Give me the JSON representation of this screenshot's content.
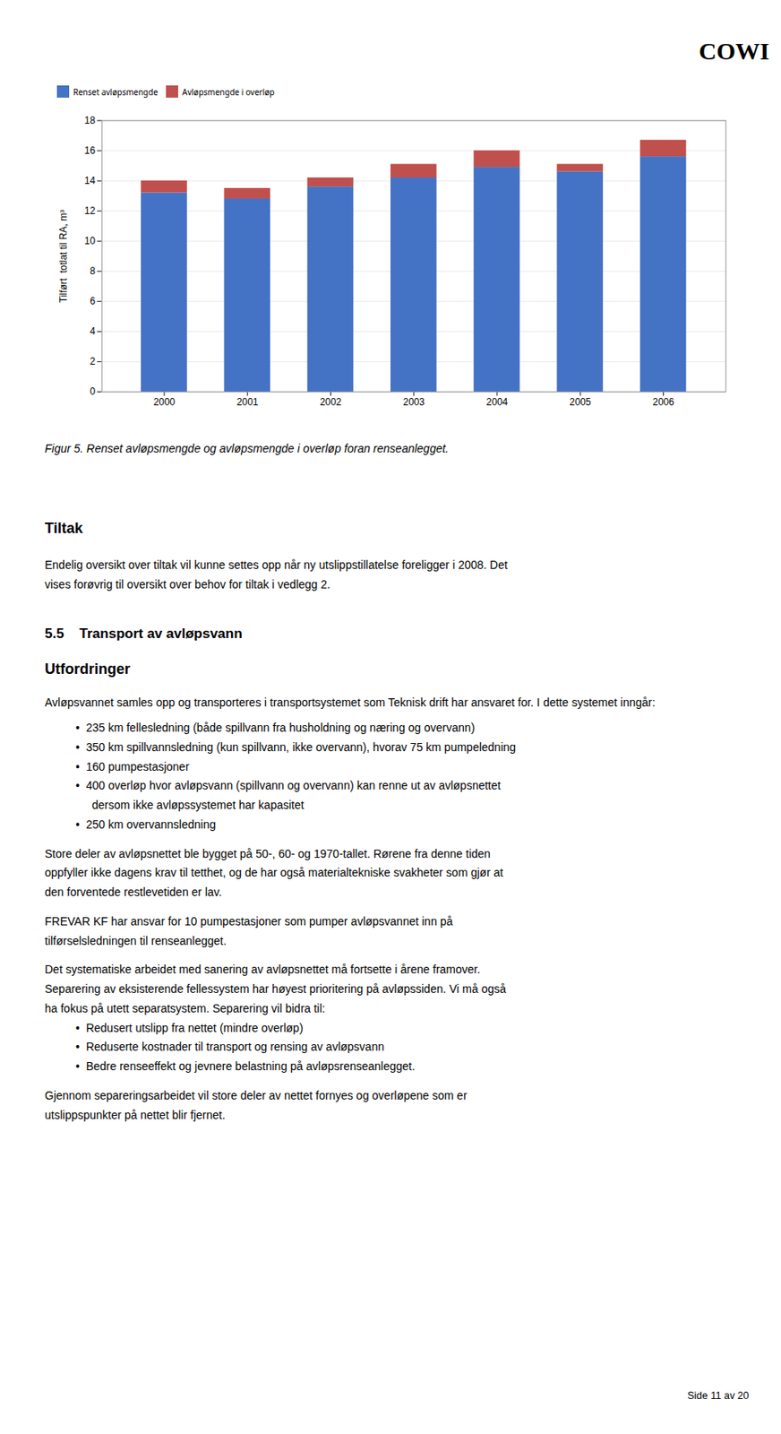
{
  "chart_data": {
    "type": "bar",
    "stacked": true,
    "categories": [
      "2000",
      "2001",
      "2002",
      "2003",
      "2004",
      "2005",
      "2006"
    ],
    "series": [
      {
        "name": "Renset avløpsmengde",
        "color": "#4472C4",
        "values": [
          13.2,
          12.8,
          13.6,
          14.2,
          14.9,
          14.6,
          15.6
        ]
      },
      {
        "name": "Avløpsmengde i overløp",
        "color": "#C0504D",
        "values": [
          0.8,
          0.7,
          0.6,
          0.9,
          1.1,
          0.5,
          1.1
        ]
      }
    ],
    "ylabel": "Tilført  totlat til RA, m³",
    "ylim": [
      0,
      18
    ],
    "yticks": [
      0,
      2,
      4,
      6,
      8,
      10,
      12,
      14,
      16,
      18
    ],
    "grid": true,
    "legend": "top",
    "annotations": [
      "COWI",
      "Figur 5. Renset avløpsmengde og avløpsmengde i overløp foran renseanlegget.",
      "Tiltak",
      "Endelig oversikt over tiltak vil kunne settes opp når ny utslippstillatelse foreligger i 2008. Det",
      "vises forøvrig til oversikt over behov for tiltak i vedlegg 2.",
      "5.5    Transport av avløpsvann",
      "Utfordringer",
      "Avløpsvannet samles opp og transporteres i transportsystemet som Teknisk drift har ansvaret for. I dette systemet inngår:",
      "•  235 km fellesledning (både spillvann fra husholdning og næring og overvann)",
      "•  350 km spillvannsledning (kun spillvann, ikke overvann), hvorav 75 km pumpeledning",
      "•  160 pumpestasjoner",
      "•  400 overløp hvor avløpsvann (spillvann og overvann) kan renne ut av avløpsnettet",
      "dersom ikke avløpssystemet har kapasitet",
      "•  250 km overvannsledning",
      "Store deler av avløpsnettet ble bygget på 50-, 60- og 1970-tallet. Rørene fra denne tiden",
      "oppfyller ikke dagens krav til tetthet, og de har også materialtekniske svakheter som gjør at",
      "den forventede restlevetiden er lav.",
      "FREVAR KF har ansvar for 10 pumpestasjoner som pumper avløpsvannet inn på",
      "tilførselsledningen til renseanlegget.",
      "Det systematiske arbeidet med sanering av avløpsnettet må fortsette i årene framover.",
      "Separering av eksisterende fellessystem har høyest prioritering på avløpssiden. Vi må også",
      "ha fokus på utett separatsystem. Separering vil bidra til:",
      "•  Redusert utslipp fra nettet (mindre overløp)",
      "•  Reduserte kostnader til transport og rensing av avløpsvann",
      "•  Bedre renseeffekt og jevnere belastning på avløpsrenseanlegget.",
      "Gjennom separeringsarbeidet vil store deler av nettet fornyes og overløpene som er",
      "utslippspunkter på nettet blir fjernet.",
      "Side 11 av 20"
    ]
  }
}
